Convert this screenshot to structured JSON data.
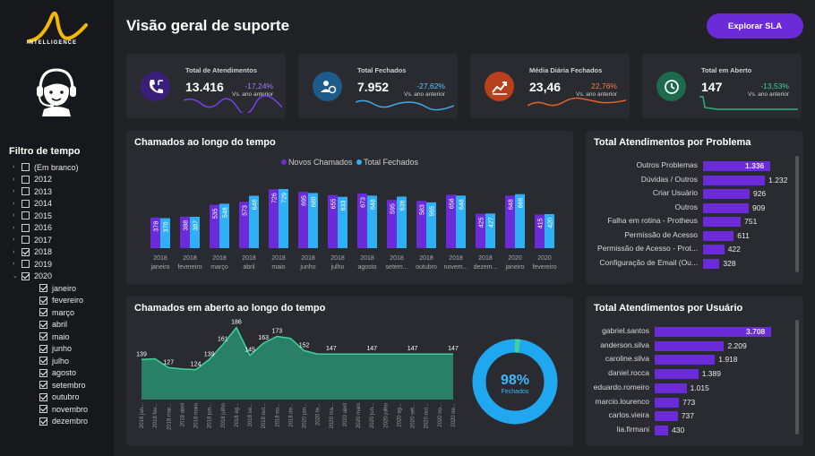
{
  "brand": {
    "name": "INTELLIGENCE"
  },
  "page_title": "Visão geral de suporte",
  "sla_button": "Explorar SLA",
  "filter": {
    "title": "Filtro de tempo",
    "years": [
      {
        "label": "(Em branco)",
        "checked": false,
        "expanded": false
      },
      {
        "label": "2012",
        "checked": false,
        "expanded": false
      },
      {
        "label": "2013",
        "checked": false,
        "expanded": false
      },
      {
        "label": "2014",
        "checked": false,
        "expanded": false
      },
      {
        "label": "2015",
        "checked": false,
        "expanded": false
      },
      {
        "label": "2016",
        "checked": false,
        "expanded": false
      },
      {
        "label": "2017",
        "checked": false,
        "expanded": false
      },
      {
        "label": "2018",
        "checked": true,
        "expanded": false
      },
      {
        "label": "2019",
        "checked": false,
        "expanded": false
      },
      {
        "label": "2020",
        "checked": true,
        "expanded": true
      }
    ],
    "months": [
      "janeiro",
      "fevereiro",
      "março",
      "abril",
      "maio",
      "junho",
      "julho",
      "agosto",
      "setembro",
      "outubro",
      "novembro",
      "dezembro"
    ]
  },
  "kpis": [
    {
      "label": "Total de Atendimentos",
      "value": "13.416",
      "delta": "-17,24%",
      "delta_color": "#a77bff",
      "sub": "Vs. ano anterior",
      "icon": "phone-icon",
      "icon_bg": "#3a1f7a",
      "spark_color": "#7b3ff2"
    },
    {
      "label": "Total Fechados",
      "value": "7.952",
      "delta": "-27,62%",
      "delta_color": "#5bc3ff",
      "sub": "Vs. ano anterior",
      "icon": "support-icon",
      "icon_bg": "#1d5b8a",
      "spark_color": "#3fa9e8"
    },
    {
      "label": "Média Diária Fechados",
      "value": "23,46",
      "delta": "22,76%",
      "delta_color": "#ff7a45",
      "sub": "Vs. ano anterior",
      "icon": "chart-up-icon",
      "icon_bg": "#b8401a",
      "spark_color": "#e0632a"
    },
    {
      "label": "Total em Aberto",
      "value": "147",
      "delta": "-13,53%",
      "delta_color": "#3fd39a",
      "sub": "Vs. ano anterior",
      "icon": "clock-icon",
      "icon_bg": "#1d6a4d",
      "spark_color": "#2fb27a"
    }
  ],
  "colors": {
    "purple": "#6c2bd9",
    "blue": "#2fb0f5",
    "green": "#2a9d78"
  },
  "chart_data": [
    {
      "type": "bar",
      "title": "Chamados ao longo do tempo",
      "legend": [
        "Novos Chamados",
        "Total Fechados"
      ],
      "categories": [
        {
          "year": "2018",
          "month": "janeiro"
        },
        {
          "year": "2018",
          "month": "fevereiro"
        },
        {
          "year": "2018",
          "month": "março"
        },
        {
          "year": "2018",
          "month": "abril"
        },
        {
          "year": "2018",
          "month": "maio"
        },
        {
          "year": "2018",
          "month": "junho"
        },
        {
          "year": "2018",
          "month": "julho"
        },
        {
          "year": "2018",
          "month": "agosto"
        },
        {
          "year": "2018",
          "month": "setem..."
        },
        {
          "year": "2018",
          "month": "outubro"
        },
        {
          "year": "2018",
          "month": "novem..."
        },
        {
          "year": "2018",
          "month": "dezem..."
        },
        {
          "year": "2020",
          "month": "janeiro"
        },
        {
          "year": "2020",
          "month": "fevereiro"
        }
      ],
      "series": [
        {
          "name": "Novos Chamados",
          "values": [
            378,
            388,
            535,
            573,
            726,
            695,
            655,
            673,
            595,
            583,
            658,
            425,
            648,
            415
          ]
        },
        {
          "name": "Total Fechados",
          "values": [
            370,
            387,
            548,
            646,
            729,
            680,
            633,
            648,
            636,
            565,
            648,
            427,
            666,
            420
          ]
        }
      ],
      "ylim": [
        0,
        800
      ]
    },
    {
      "type": "area",
      "title": "Chamados em aberto ao longo do tempo",
      "x": [
        "2018 jan...",
        "2018 fev...",
        "2018 mar...",
        "2018 abril",
        "2018 maio",
        "2018 jun...",
        "2018 julho",
        "2018 ag...",
        "2018 se...",
        "2018 out...",
        "2018 no...",
        "2018 de...",
        "2020 jan...",
        "2020 fe...",
        "2020 ma...",
        "2020 abril",
        "2020 maio",
        "2020 jun...",
        "2020 julho",
        "2020 ag...",
        "2020 set...",
        "2020 out...",
        "2020 no...",
        "2020 de..."
      ],
      "values": [
        139,
        140,
        127,
        125,
        124,
        139,
        161,
        186,
        145,
        163,
        173,
        170,
        152,
        147,
        147,
        147,
        147,
        147,
        147,
        147,
        147,
        147,
        147,
        147
      ],
      "labels": [
        {
          "i": 0,
          "text": "139"
        },
        {
          "i": 2,
          "text": "127"
        },
        {
          "i": 4,
          "text": "124"
        },
        {
          "i": 5,
          "text": "139"
        },
        {
          "i": 6,
          "text": "161"
        },
        {
          "i": 7,
          "text": "186"
        },
        {
          "i": 8,
          "text": "145"
        },
        {
          "i": 9,
          "text": "163"
        },
        {
          "i": 10,
          "text": "173"
        },
        {
          "i": 12,
          "text": "152"
        },
        {
          "i": 14,
          "text": "147"
        },
        {
          "i": 17,
          "text": "147"
        },
        {
          "i": 20,
          "text": "147"
        },
        {
          "i": 23,
          "text": "147"
        }
      ],
      "ylim": [
        80,
        200
      ]
    },
    {
      "type": "pie",
      "center_value": "98%",
      "center_label": "Fechados",
      "slices": [
        {
          "name": "Fechados",
          "value": 98
        },
        {
          "name": "Em aberto",
          "value": 2
        }
      ]
    },
    {
      "type": "bar",
      "orientation": "horizontal",
      "title": "Total Atendimentos por Problema",
      "categories": [
        "Outros Problemas",
        "Dúvidas / Outros",
        "Criar Usuário",
        "Outros",
        "Falha em rotina - Protheus",
        "Permissão de Acesso",
        "Permissão de Acesso - Prot...",
        "Configuração de Email (Ou..."
      ],
      "values": [
        1336,
        1232,
        926,
        909,
        751,
        611,
        422,
        328
      ],
      "value_labels": [
        "1.336",
        "1.232",
        "926",
        "909",
        "751",
        "611",
        "422",
        "328"
      ]
    },
    {
      "type": "bar",
      "orientation": "horizontal",
      "title": "Total Atendimentos por Usuário",
      "categories": [
        "gabriel.santos",
        "anderson.silva",
        "caroline.silva",
        "daniel.rocca",
        "eduardo.romeiro",
        "marcio.lourenco",
        "carlos.vieira",
        "lia.firmani"
      ],
      "values": [
        3708,
        2209,
        1918,
        1389,
        1015,
        773,
        737,
        430
      ],
      "value_labels": [
        "3.708",
        "2.209",
        "1.918",
        "1.389",
        "1.015",
        "773",
        "737",
        "430"
      ]
    }
  ]
}
